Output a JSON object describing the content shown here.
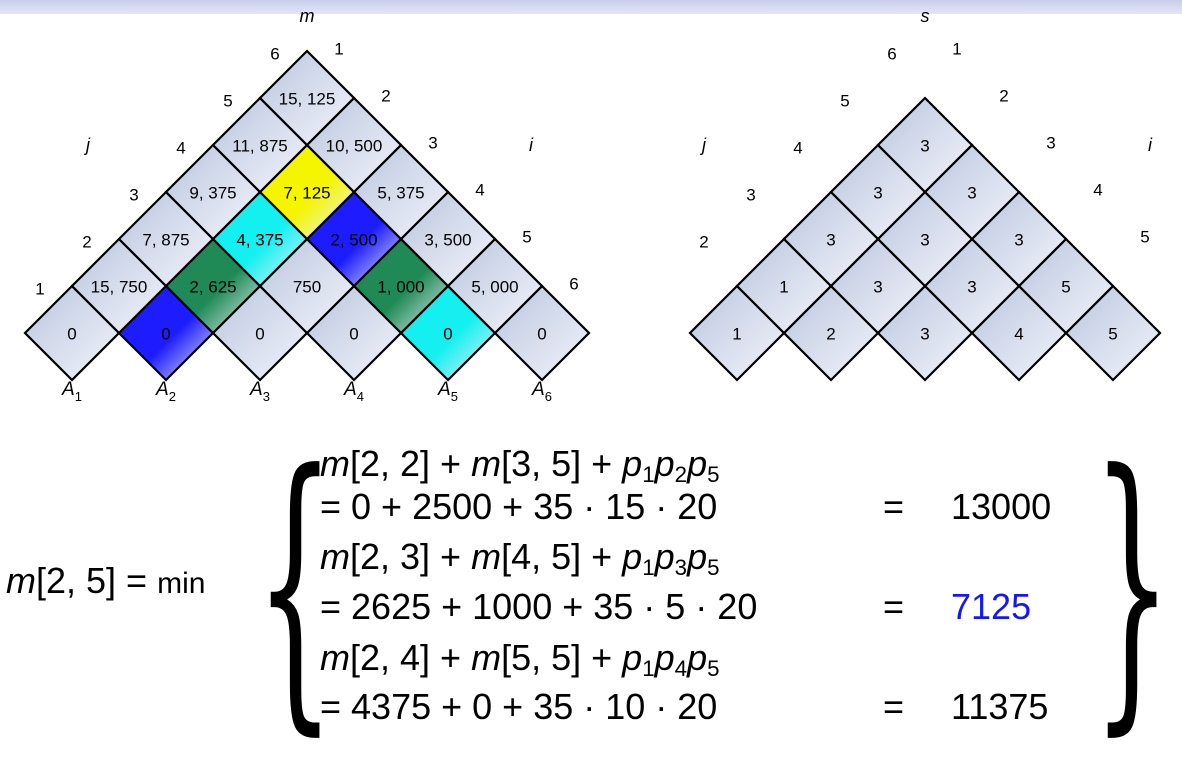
{
  "m_table": {
    "title": "m",
    "j_label": "j",
    "i_label": "i",
    "left_axis": [
      "1",
      "2",
      "3",
      "4",
      "5",
      "6"
    ],
    "right_axis": [
      "1",
      "2",
      "3",
      "4",
      "5",
      "6"
    ],
    "matrix_labels": [
      "A1",
      "A2",
      "A3",
      "A4",
      "A5",
      "A6"
    ],
    "rows": [
      [
        "0",
        "0",
        "0",
        "0",
        "0",
        "0"
      ],
      [
        "15, 750",
        "2, 625",
        "750",
        "1, 000",
        "5, 000"
      ],
      [
        "7, 875",
        "4, 375",
        "2, 500",
        "3, 500"
      ],
      [
        "9, 375",
        "7, 125",
        "5, 375"
      ],
      [
        "11, 875",
        "10, 500"
      ],
      [
        "15, 125"
      ]
    ],
    "highlights": [
      {
        "row": 0,
        "col": 1,
        "color": "#1c1cff"
      },
      {
        "row": 0,
        "col": 4,
        "color": "#14f0f0"
      },
      {
        "row": 1,
        "col": 1,
        "color": "#1f8a56"
      },
      {
        "row": 1,
        "col": 3,
        "color": "#1f8a56"
      },
      {
        "row": 2,
        "col": 1,
        "color": "#14f0f0"
      },
      {
        "row": 2,
        "col": 2,
        "color": "#1c1cff"
      },
      {
        "row": 3,
        "col": 1,
        "color": "#f5f500"
      }
    ]
  },
  "s_table": {
    "title": "s",
    "j_label": "j",
    "i_label": "i",
    "left_axis": [
      "2",
      "3",
      "4",
      "5",
      "6"
    ],
    "right_axis": [
      "1",
      "2",
      "3",
      "4",
      "5"
    ],
    "rows": [
      [
        "1",
        "2",
        "3",
        "4",
        "5"
      ],
      [
        "1",
        "3",
        "3",
        "5"
      ],
      [
        "3",
        "3",
        "3"
      ],
      [
        "3",
        "3"
      ],
      [
        "3"
      ]
    ]
  },
  "equation": {
    "lhs_var": "m",
    "lhs_args": "[2, 5] = ",
    "min_label": "min",
    "rows": [
      {
        "expr_m1": "m",
        "expr_a1": "[2, 2] + ",
        "expr_m2": "m",
        "expr_a2": "[3, 5] + ",
        "p": [
          "p",
          "1",
          "p",
          "2",
          "p",
          "5"
        ],
        "calc": "= 0 + 2500 + 35 · 15 · 20",
        "eq": "=",
        "result": "13000",
        "highlight": false
      },
      {
        "expr_m1": "m",
        "expr_a1": "[2, 3] + ",
        "expr_m2": "m",
        "expr_a2": "[4, 5] + ",
        "p": [
          "p",
          "1",
          "p",
          "3",
          "p",
          "5"
        ],
        "calc": "= 2625 + 1000 + 35 · 5 · 20",
        "eq": "=",
        "result": "7125",
        "highlight": true
      },
      {
        "expr_m1": "m",
        "expr_a1": "[2, 4] + ",
        "expr_m2": "m",
        "expr_a2": "[5, 5] + ",
        "p": [
          "p",
          "1",
          "p",
          "4",
          "p",
          "5"
        ],
        "calc": "= 4375 + 0 + 35 · 10 · 20",
        "eq": "=",
        "result": "11375",
        "highlight": false
      }
    ],
    "colors": {
      "highlight": "#1515ff",
      "cell_base": "#c3cde0",
      "cell_light": "#eef0f8"
    }
  }
}
